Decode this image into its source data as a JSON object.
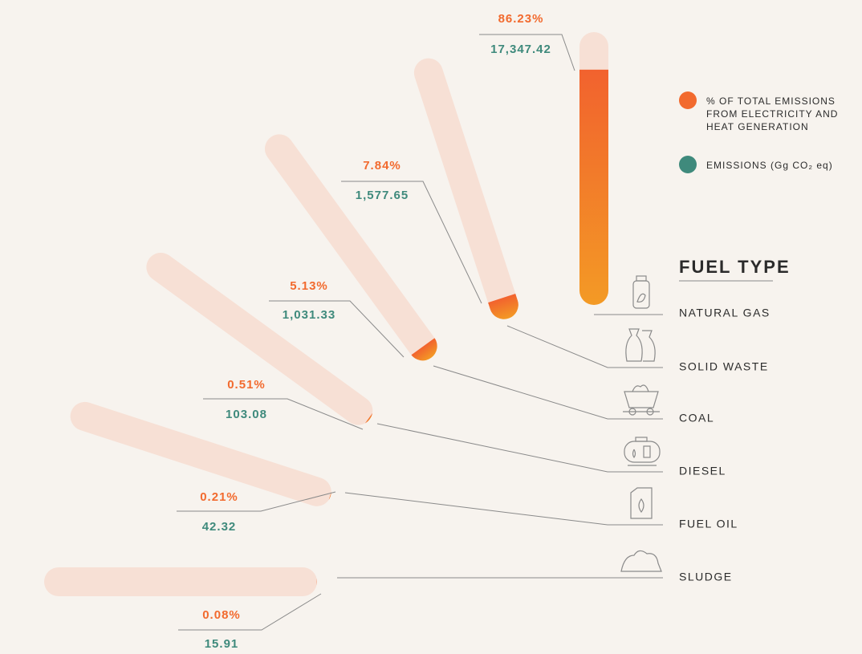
{
  "chart_data": {
    "type": "radial-bar",
    "title": "FUEL TYPE",
    "categories": [
      "NATURAL GAS",
      "SOLID WASTE",
      "COAL",
      "DIESEL",
      "FUEL OIL",
      "SLUDGE"
    ],
    "ylim": [
      0,
      100
    ],
    "track_color": "#f7e0d5",
    "series": [
      {
        "name": "% OF TOTAL EMISSIONS FROM ELECTRICITY AND HEAT GENERATION",
        "color": "#f26a2e",
        "values": [
          86.23,
          7.84,
          5.13,
          0.51,
          0.21,
          0.08
        ],
        "value_labels": [
          "86.23%",
          "7.84%",
          "5.13%",
          "0.51%",
          "0.21%",
          "0.08%"
        ]
      },
      {
        "name": "EMISSIONS (Gg CO₂ eq)",
        "color": "#3f8a7c",
        "values": [
          17347.42,
          1577.65,
          1031.33,
          103.08,
          42.32,
          15.91
        ],
        "value_labels": [
          "17,347.42",
          "1,577.65",
          "1,031.33",
          "103.08",
          "42.32",
          "15.91"
        ]
      }
    ]
  }
}
